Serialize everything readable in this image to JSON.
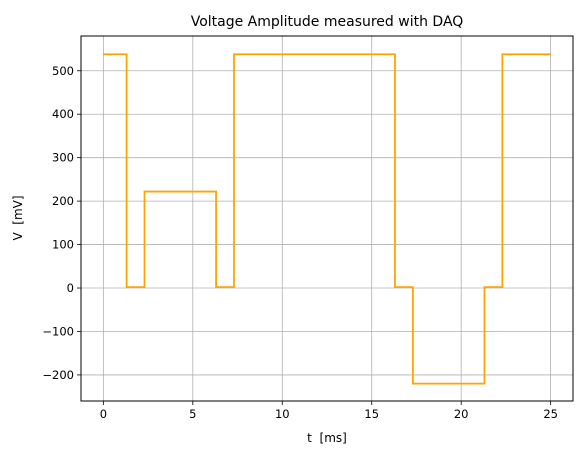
{
  "chart_data": {
    "type": "line",
    "title": "Voltage Amplitude measured with DAQ",
    "xlabel": "t  [ms]",
    "ylabel": "V  [mV]",
    "xlim": [
      -1.25,
      26.25
    ],
    "ylim": [
      -260,
      580
    ],
    "xticks": [
      0,
      5,
      10,
      15,
      20,
      25
    ],
    "yticks": [
      -200,
      -100,
      0,
      100,
      200,
      300,
      400,
      500
    ],
    "grid": true,
    "line_color": "#ffa500",
    "series": [
      {
        "x": [
          0,
          1.3,
          1.3,
          2.3,
          2.3,
          6.3,
          6.3,
          7.3,
          7.3,
          16.3,
          16.3,
          17.3,
          17.3,
          21.3,
          21.3,
          22.3,
          22.3,
          25
        ],
        "values": [
          538,
          538,
          2,
          2,
          222,
          222,
          2,
          2,
          538,
          538,
          2,
          2,
          -220,
          -220,
          2,
          2,
          538,
          538
        ]
      }
    ]
  }
}
